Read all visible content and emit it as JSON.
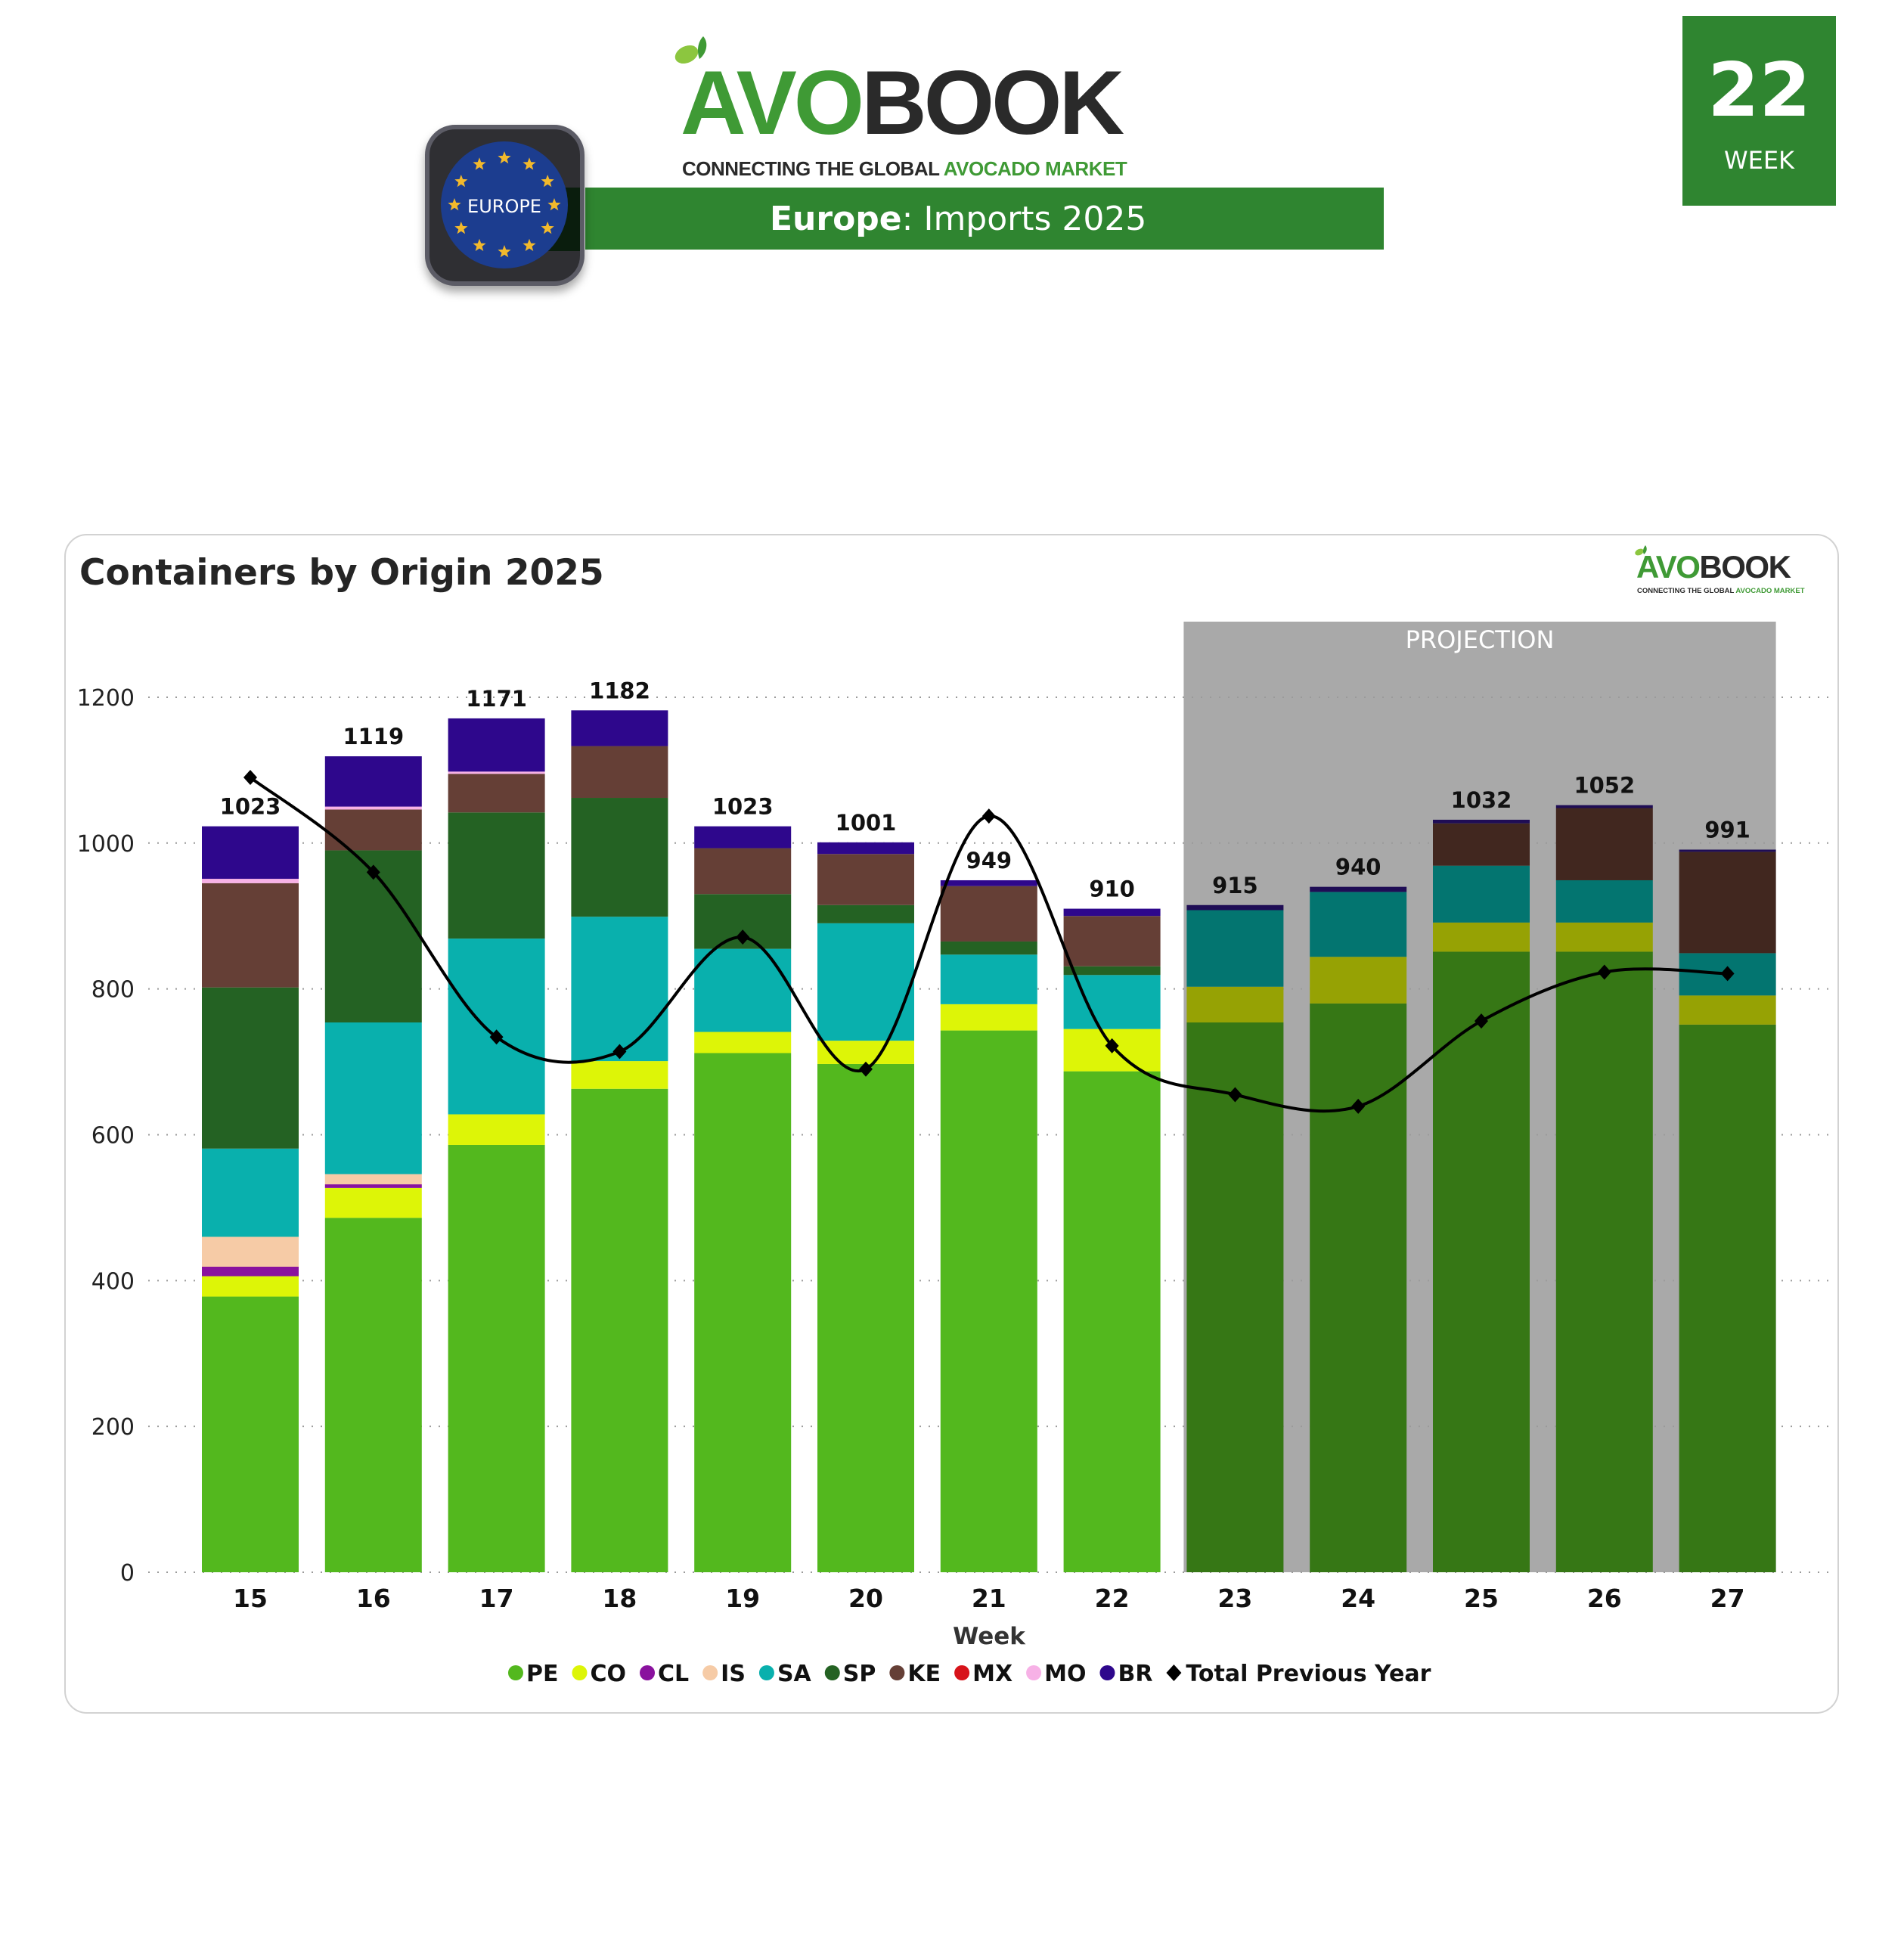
{
  "header": {
    "brand_avo": "AVO",
    "brand_book": "BOOK",
    "tagline_dark": "CONNECTING THE GLOBAL",
    "tagline_green": "AVOCADO MARKET",
    "banner_region": "Europe",
    "banner_rest": ": Imports 2025",
    "badge_label": "EUROPE",
    "week_number": "22",
    "week_label": "WEEK"
  },
  "colors": {
    "brand_green": "#2f8530",
    "projection_bg": "#a9a9a9"
  },
  "panel": {
    "title": "Containers by Origin 2025",
    "projection_label": "PROJECTION"
  },
  "chart_data": {
    "type": "bar",
    "stacked": true,
    "title": "Containers by Origin 2025",
    "xlabel": "Week",
    "ylabel": "",
    "ylim": [
      0,
      1300
    ],
    "yticks": [
      0,
      200,
      400,
      600,
      800,
      1000,
      1200
    ],
    "grid": true,
    "legend_position": "bottom",
    "categories": [
      "15",
      "16",
      "17",
      "18",
      "19",
      "20",
      "21",
      "22",
      "23",
      "24",
      "25",
      "26",
      "27"
    ],
    "projection_categories": [
      "23",
      "24",
      "25",
      "26",
      "27"
    ],
    "totals": [
      1023,
      1119,
      1171,
      1182,
      1023,
      1001,
      949,
      910,
      915,
      940,
      1032,
      1052,
      991
    ],
    "series": [
      {
        "name": "PE",
        "color": "#53b81e",
        "projection_color": "#367715",
        "values": [
          378,
          486,
          586,
          663,
          712,
          697,
          743,
          687,
          754,
          780,
          851,
          851,
          751
        ]
      },
      {
        "name": "CO",
        "color": "#ddf507",
        "projection_color": "#96a204",
        "values": [
          28,
          41,
          42,
          38,
          29,
          32,
          36,
          58,
          49,
          64,
          40,
          40,
          40
        ]
      },
      {
        "name": "CL",
        "color": "#8a129e",
        "projection_color": "#5b0c69",
        "values": [
          13,
          5,
          0,
          0,
          0,
          0,
          0,
          0,
          0,
          0,
          0,
          0,
          0
        ]
      },
      {
        "name": "IS",
        "color": "#f6cba6",
        "projection_color": "#a3876f",
        "values": [
          41,
          14,
          0,
          0,
          0,
          0,
          0,
          0,
          0,
          0,
          0,
          0,
          0
        ]
      },
      {
        "name": "SA",
        "color": "#09b0ad",
        "projection_color": "#037570",
        "values": [
          121,
          208,
          241,
          198,
          114,
          161,
          68,
          74,
          105,
          89,
          78,
          58,
          58
        ]
      },
      {
        "name": "SP",
        "color": "#246223",
        "projection_color": "#184117",
        "values": [
          221,
          236,
          173,
          163,
          75,
          25,
          18,
          12,
          0,
          0,
          0,
          0,
          0
        ]
      },
      {
        "name": "KE",
        "color": "#653f36",
        "projection_color": "#41271f",
        "values": [
          143,
          56,
          53,
          71,
          63,
          70,
          76,
          69,
          0,
          0,
          58,
          99,
          139
        ]
      },
      {
        "name": "MX",
        "color": "#d7131a",
        "projection_color": "#8f0d11",
        "values": [
          0,
          0,
          0,
          0,
          0,
          0,
          0,
          0,
          0,
          0,
          0,
          0,
          0
        ]
      },
      {
        "name": "MO",
        "color": "#f7b1e6",
        "projection_color": "#a47698",
        "values": [
          6,
          4,
          3,
          0,
          0,
          0,
          0,
          0,
          0,
          0,
          0,
          0,
          0
        ]
      },
      {
        "name": "BR",
        "color": "#2e078c",
        "projection_color": "#1f0d55",
        "values": [
          72,
          69,
          73,
          49,
          30,
          16,
          8,
          10,
          7,
          7,
          5,
          4,
          3
        ]
      }
    ],
    "line_series": {
      "name": "Total Previous Year",
      "color": "#000000",
      "marker": "diamond",
      "values": [
        1090,
        960,
        734,
        714,
        871,
        690,
        1037,
        722,
        655,
        639,
        756,
        823,
        821
      ]
    }
  }
}
